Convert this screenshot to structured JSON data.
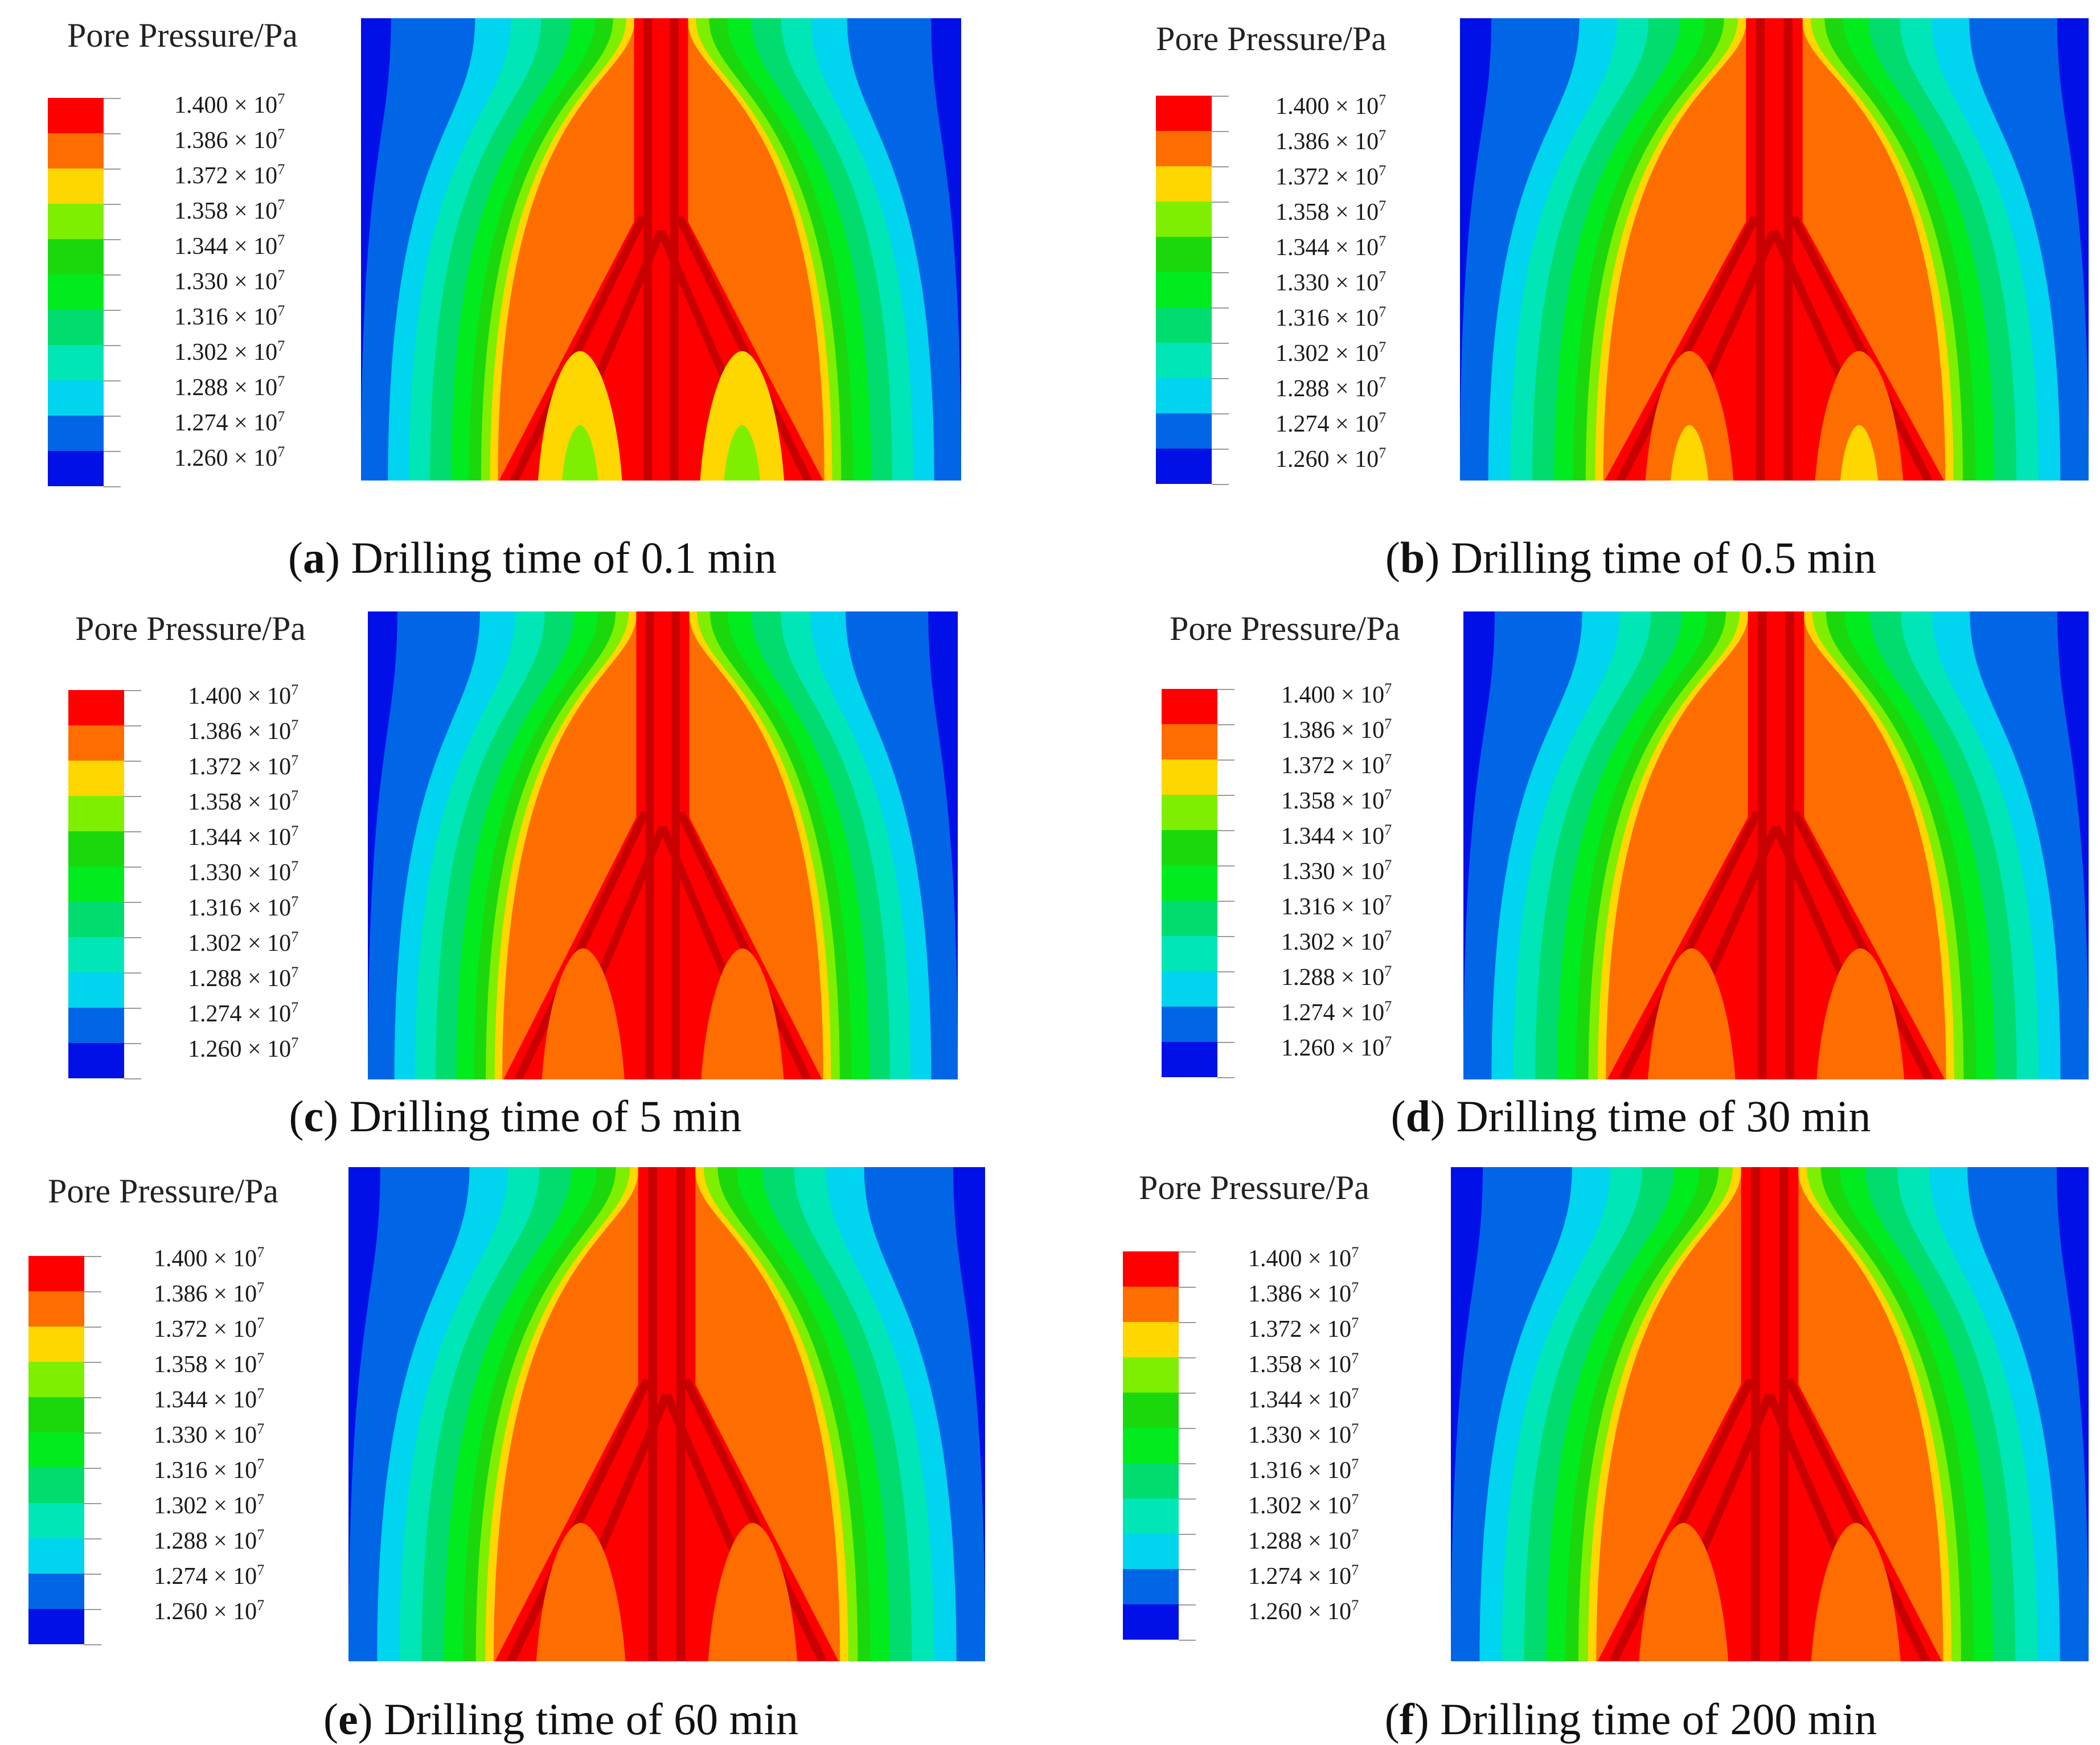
{
  "legend": {
    "title": "Pore Pressure/Pa",
    "levels": [
      {
        "label": "1.400 × 10",
        "exp": "7",
        "color": "#fe0000"
      },
      {
        "label": "1.386 × 10",
        "exp": "7",
        "color": "#fe6d00"
      },
      {
        "label": "1.372 × 10",
        "exp": "7",
        "color": "#fed600"
      },
      {
        "label": "1.358 × 10",
        "exp": "7",
        "color": "#7eef00"
      },
      {
        "label": "1.344 × 10",
        "exp": "7",
        "color": "#1bd80d"
      },
      {
        "label": "1.330 × 10",
        "exp": "7",
        "color": "#00ec1e"
      },
      {
        "label": "1.316 × 10",
        "exp": "7",
        "color": "#00dd6e"
      },
      {
        "label": "1.302 × 10",
        "exp": "7",
        "color": "#00e6b6"
      },
      {
        "label": "1.288 × 10",
        "exp": "7",
        "color": "#00d4ee"
      },
      {
        "label": "1.274 × 10",
        "exp": "7",
        "color": "#0066e6"
      },
      {
        "label": "1.260 × 10",
        "exp": "7",
        "color": "#0010e6"
      }
    ]
  },
  "panels": [
    {
      "letter": "a",
      "caption": "Drilling time of 0.1 min"
    },
    {
      "letter": "b",
      "caption": "Drilling time of 0.5 min"
    },
    {
      "letter": "c",
      "caption": "Drilling time of 5 min"
    },
    {
      "letter": "d",
      "caption": "Drilling time of 30 min"
    },
    {
      "letter": "e",
      "caption": "Drilling time of 60 min"
    },
    {
      "letter": "f",
      "caption": "Drilling time of 200 min"
    }
  ]
}
